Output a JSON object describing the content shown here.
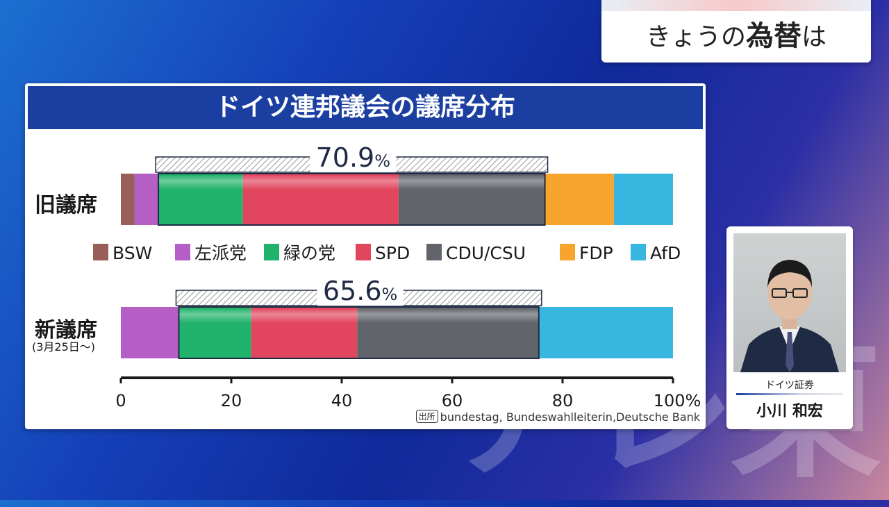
{
  "header": {
    "text_a": "きょうの",
    "text_b": "為替",
    "text_c": "は"
  },
  "watermark": "テレ東",
  "panel": {
    "title": "ドイツ連邦議会の議席分布",
    "source_tag": "出所",
    "source": "bundestag, Bundeswahlleiterin,Deutsche Bank"
  },
  "person": {
    "company": "ドイツ証券",
    "name": "小川 和宏"
  },
  "chart_data": {
    "type": "bar",
    "orientation": "horizontal-stacked-100",
    "title": "ドイツ連邦議会の議席分布",
    "xlim": [
      0,
      100
    ],
    "x_ticks": [
      "0",
      "20",
      "40",
      "60",
      "80",
      "100%"
    ],
    "legend": [
      {
        "name": "BSW",
        "color": "#9a5e58"
      },
      {
        "name": "左派党",
        "color": "#b45ec6"
      },
      {
        "name": "緑の党",
        "color": "#21b36b"
      },
      {
        "name": "SPD",
        "color": "#e2465f"
      },
      {
        "name": "CDU/CSU",
        "color": "#62646b"
      },
      {
        "name": "FDP",
        "color": "#f7a52d"
      },
      {
        "name": "AfD",
        "color": "#37b7df"
      }
    ],
    "rows": [
      {
        "label": "旧議席",
        "sublabel": "",
        "bracket_label": "70.9",
        "bracket_unit": "%",
        "segments": [
          {
            "party": "BSW",
            "value": 2.5
          },
          {
            "party": "左派党",
            "value": 4.3
          },
          {
            "party": "緑の党",
            "value": 15.3
          },
          {
            "party": "SPD",
            "value": 28.2
          },
          {
            "party": "CDU/CSU",
            "value": 26.5
          },
          {
            "party": "FDP",
            "value": 12.5
          },
          {
            "party": "AfD",
            "value": 10.7
          }
        ]
      },
      {
        "label": "新議席",
        "sublabel": "(3月25日〜)",
        "bracket_label": "65.6",
        "bracket_unit": "%",
        "segments": [
          {
            "party": "左派党",
            "value": 10.5
          },
          {
            "party": "緑の党",
            "value": 13.1
          },
          {
            "party": "SPD",
            "value": 19.2
          },
          {
            "party": "CDU/CSU",
            "value": 32.9
          },
          {
            "party": "AfD",
            "value": 24.3
          }
        ]
      }
    ]
  }
}
